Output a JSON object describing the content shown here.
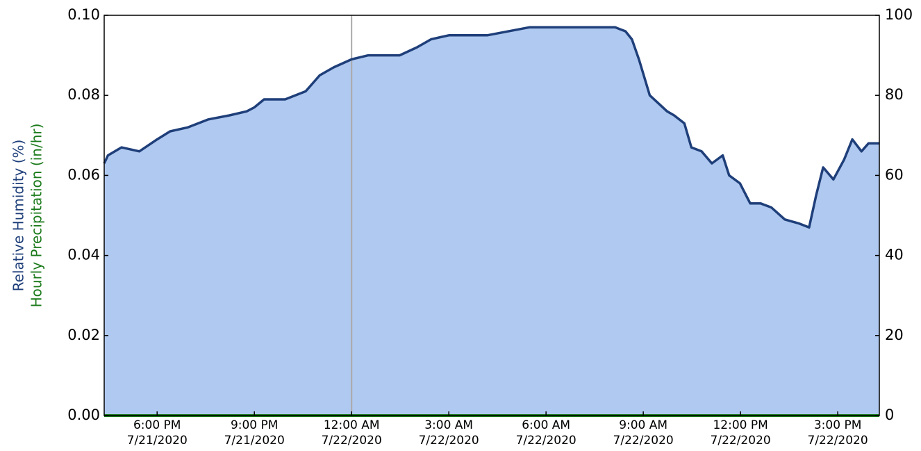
{
  "chart_data": {
    "type": "area",
    "x": [
      "2020-07-21T16:22",
      "2020-07-21T16:29",
      "2020-07-21T16:54",
      "2020-07-21T17:27",
      "2020-07-21T18:00",
      "2020-07-21T18:24",
      "2020-07-21T18:57",
      "2020-07-21T19:35",
      "2020-07-21T20:14",
      "2020-07-21T20:46",
      "2020-07-21T21:00",
      "2020-07-21T21:18",
      "2020-07-21T21:57",
      "2020-07-21T22:35",
      "2020-07-21T23:01",
      "2020-07-21T23:27",
      "2020-07-22T00:00",
      "2020-07-22T00:31",
      "2020-07-22T01:29",
      "2020-07-22T02:01",
      "2020-07-22T02:27",
      "2020-07-22T03:00",
      "2020-07-22T04:11",
      "2020-07-22T05:29",
      "2020-07-22T08:08",
      "2020-07-22T08:27",
      "2020-07-22T08:39",
      "2020-07-22T08:52",
      "2020-07-22T09:12",
      "2020-07-22T09:44",
      "2020-07-22T09:57",
      "2020-07-22T10:16",
      "2020-07-22T10:29",
      "2020-07-22T10:48",
      "2020-07-22T11:07",
      "2020-07-22T11:27",
      "2020-07-22T11:39",
      "2020-07-22T11:59",
      "2020-07-22T12:18",
      "2020-07-22T12:37",
      "2020-07-22T12:57",
      "2020-07-22T13:22",
      "2020-07-22T13:48",
      "2020-07-22T14:07",
      "2020-07-22T14:20",
      "2020-07-22T14:33",
      "2020-07-22T14:52",
      "2020-07-22T15:12",
      "2020-07-22T15:27",
      "2020-07-22T15:44",
      "2020-07-22T15:57",
      "2020-07-22T16:17"
    ],
    "series": [
      {
        "name": "Relative Humidity (%)",
        "color": "#1f3f7a",
        "fill": "#b0c9f0",
        "axis": "y2",
        "values": [
          63,
          65,
          67,
          66,
          69,
          71,
          72,
          74,
          75,
          76,
          77,
          79,
          79,
          81,
          85,
          87,
          89,
          90,
          90,
          92,
          94,
          95,
          95,
          97,
          97,
          96,
          94,
          89,
          80,
          76,
          75,
          73,
          67,
          66,
          63,
          65,
          60,
          58,
          53,
          53,
          52,
          49,
          48,
          47,
          55,
          62,
          59,
          64,
          69,
          66,
          68,
          68
        ]
      },
      {
        "name": "Hourly Precipitation (in/hr)",
        "color": "#1a7a1a",
        "axis": "y",
        "values": [
          0,
          0,
          0,
          0,
          0,
          0,
          0,
          0,
          0,
          0,
          0,
          0,
          0,
          0,
          0,
          0,
          0,
          0,
          0,
          0,
          0,
          0,
          0,
          0,
          0,
          0,
          0,
          0,
          0,
          0,
          0,
          0,
          0,
          0,
          0,
          0,
          0,
          0,
          0,
          0,
          0,
          0,
          0,
          0,
          0,
          0,
          0,
          0,
          0,
          0,
          0,
          0
        ]
      }
    ],
    "xlim": [
      "2020-07-21T16:22",
      "2020-07-22T16:17"
    ],
    "xticks": [
      {
        "value": "2020-07-21T18:00",
        "label": [
          "6:00 PM",
          "7/21/2020"
        ]
      },
      {
        "value": "2020-07-21T21:00",
        "label": [
          "9:00 PM",
          "7/21/2020"
        ]
      },
      {
        "value": "2020-07-22T00:00",
        "label": [
          "12:00 AM",
          "7/22/2020"
        ]
      },
      {
        "value": "2020-07-22T03:00",
        "label": [
          "3:00 AM",
          "7/22/2020"
        ]
      },
      {
        "value": "2020-07-22T06:00",
        "label": [
          "6:00 AM",
          "7/22/2020"
        ]
      },
      {
        "value": "2020-07-22T09:00",
        "label": [
          "9:00 AM",
          "7/22/2020"
        ]
      },
      {
        "value": "2020-07-22T12:00",
        "label": [
          "12:00 PM",
          "7/22/2020"
        ]
      },
      {
        "value": "2020-07-22T15:00",
        "label": [
          "3:00 PM",
          "7/22/2020"
        ]
      }
    ],
    "ylim": [
      0,
      0.1
    ],
    "yticks": [
      {
        "value": 0,
        "label": "0.00"
      },
      {
        "value": 0.02,
        "label": "0.02"
      },
      {
        "value": 0.04,
        "label": "0.04"
      },
      {
        "value": 0.06,
        "label": "0.06"
      },
      {
        "value": 0.08,
        "label": "0.08"
      },
      {
        "value": 0.1,
        "label": "0.10"
      }
    ],
    "y2lim": [
      0,
      100
    ],
    "y2ticks": [
      0,
      20,
      40,
      60,
      80,
      100
    ],
    "vline": "2020-07-22T00:00"
  }
}
